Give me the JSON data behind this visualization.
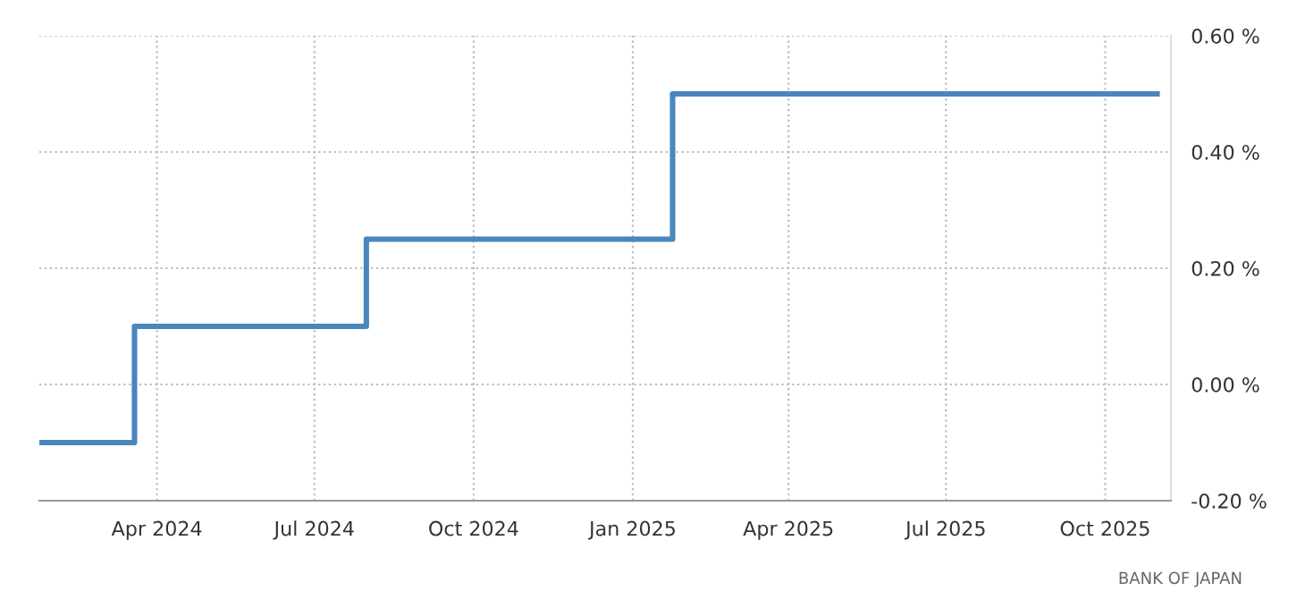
{
  "chart_data": {
    "type": "step",
    "x": [
      "2024-01-24",
      "2024-03-19",
      "2024-07-31",
      "2025-01-24",
      "2025-10-31"
    ],
    "series": [
      {
        "color": "#4a86be",
        "values": [
          -0.1,
          0.1,
          0.25,
          0.5,
          0.5
        ]
      }
    ],
    "xlim": [
      "2024-01-24",
      "2025-11-08"
    ],
    "xticks": [
      {
        "value": "2024-04-01",
        "label": "Apr 2024"
      },
      {
        "value": "2024-07-01",
        "label": "Jul 2024"
      },
      {
        "value": "2024-10-01",
        "label": "Oct 2024"
      },
      {
        "value": "2025-01-01",
        "label": "Jan 2025"
      },
      {
        "value": "2025-04-01",
        "label": "Apr 2025"
      },
      {
        "value": "2025-07-01",
        "label": "Jul 2025"
      },
      {
        "value": "2025-10-01",
        "label": "Oct 2025"
      }
    ],
    "ylim": [
      -0.2,
      0.6
    ],
    "yticks": [
      {
        "value": -0.2,
        "label": "-0.20 %"
      },
      {
        "value": 0,
        "label": "0.00 %"
      },
      {
        "value": 0.2,
        "label": "0.20 %"
      },
      {
        "value": 0.4,
        "label": "0.40 %"
      },
      {
        "value": 0.6,
        "label": "0.60 %"
      }
    ],
    "grid": true,
    "annotations": [
      "BANK OF JAPAN"
    ]
  }
}
